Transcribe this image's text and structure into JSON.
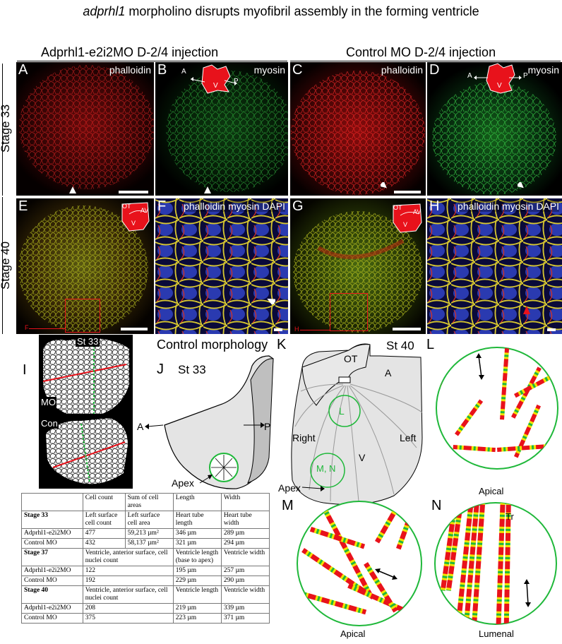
{
  "title": {
    "gene": "adprhl1",
    "rest": " morpholino disrupts myofibril assembly in the forming ventricle"
  },
  "groups": {
    "left": "Adprhl1-e2i2MO D-2/4 injection",
    "right": "Control MO D-2/4 injection"
  },
  "stages": {
    "row1": "Stage 33",
    "row2": "Stage 40"
  },
  "panels": {
    "A": {
      "letter": "A",
      "tag": "phalloidin"
    },
    "B": {
      "letter": "B",
      "tag": "myosin",
      "inset": {
        "a": "A",
        "v": "V",
        "p": "P"
      }
    },
    "C": {
      "letter": "C",
      "tag": "phalloidin"
    },
    "D": {
      "letter": "D",
      "tag": "myosin",
      "inset": {
        "a": "A",
        "v": "V",
        "p": "P"
      }
    },
    "E": {
      "letter": "E",
      "box_label": "F",
      "inset": {
        "ot": "OT",
        "av": "AV",
        "v": "V"
      }
    },
    "F": {
      "letter": "F",
      "tag": "phalloidin myosin DAPI"
    },
    "G": {
      "letter": "G",
      "box_label": "H",
      "inset": {
        "ot": "OT",
        "av": "AV",
        "v": "V"
      }
    },
    "H": {
      "letter": "H",
      "tag": "phalloidin myosin DAPI"
    }
  },
  "panel_I": {
    "letter": "I",
    "st": "St 33",
    "mo": "MO",
    "con": "Con"
  },
  "panel_J": {
    "letter": "J",
    "header": "Control morphology",
    "st": "St 33",
    "a": "A",
    "p": "P",
    "apex": "Apex"
  },
  "panel_K": {
    "letter": "K",
    "st": "St 40",
    "ot": "OT",
    "a": "A",
    "l": "L",
    "right": "Right",
    "left": "Left",
    "v": "V",
    "mn": "M, N",
    "apex": "Apex"
  },
  "panel_L": {
    "letter": "L",
    "caption": "Apical"
  },
  "panel_M": {
    "letter": "M",
    "caption": "Apical"
  },
  "panel_N": {
    "letter": "N",
    "caption": "Lumenal",
    "tr": "Tr"
  },
  "table": {
    "header": [
      "",
      "Cell count",
      "Sum of cell areas",
      "Length",
      "Width"
    ],
    "rows": [
      {
        "type": "stage",
        "cells": [
          "Stage 33",
          "Left surface cell count",
          "Left surface cell area",
          "Heart tube length",
          "Heart tube width"
        ]
      },
      {
        "type": "data",
        "cells": [
          "Adprhl1-e2i2MO",
          "477",
          "59,213 µm²",
          "346 µm",
          "289 µm"
        ]
      },
      {
        "type": "data",
        "cells": [
          "Control MO",
          "432",
          "58,137 µm²",
          "321 µm",
          "294 µm"
        ]
      },
      {
        "type": "stage2",
        "cells": [
          "Stage 37",
          "Ventricle, anterior surface, cell nuclei count",
          "Ventricle length (base to apex)",
          "Ventricle width"
        ]
      },
      {
        "type": "data2",
        "cells": [
          "Adprhl1-e2i2MO",
          "122",
          "195 µm",
          "257 µm"
        ]
      },
      {
        "type": "data2",
        "cells": [
          "Control MO",
          "192",
          "229 µm",
          "290 µm"
        ]
      },
      {
        "type": "stage2",
        "cells": [
          "Stage 40",
          "Ventricle, anterior surface, cell nuclei count",
          "Ventricle length",
          "Ventricle width"
        ]
      },
      {
        "type": "data2",
        "cells": [
          "Adprhl1-e2i2MO",
          "208",
          "219 µm",
          "339 µm"
        ]
      },
      {
        "type": "data2",
        "cells": [
          "Control MO",
          "375",
          "223 µm",
          "371 µm"
        ]
      }
    ]
  },
  "colors": {
    "red": "#e8121b",
    "green": "#1fb83a",
    "yellow": "#f2e300",
    "heart": "#e4e4e4"
  }
}
